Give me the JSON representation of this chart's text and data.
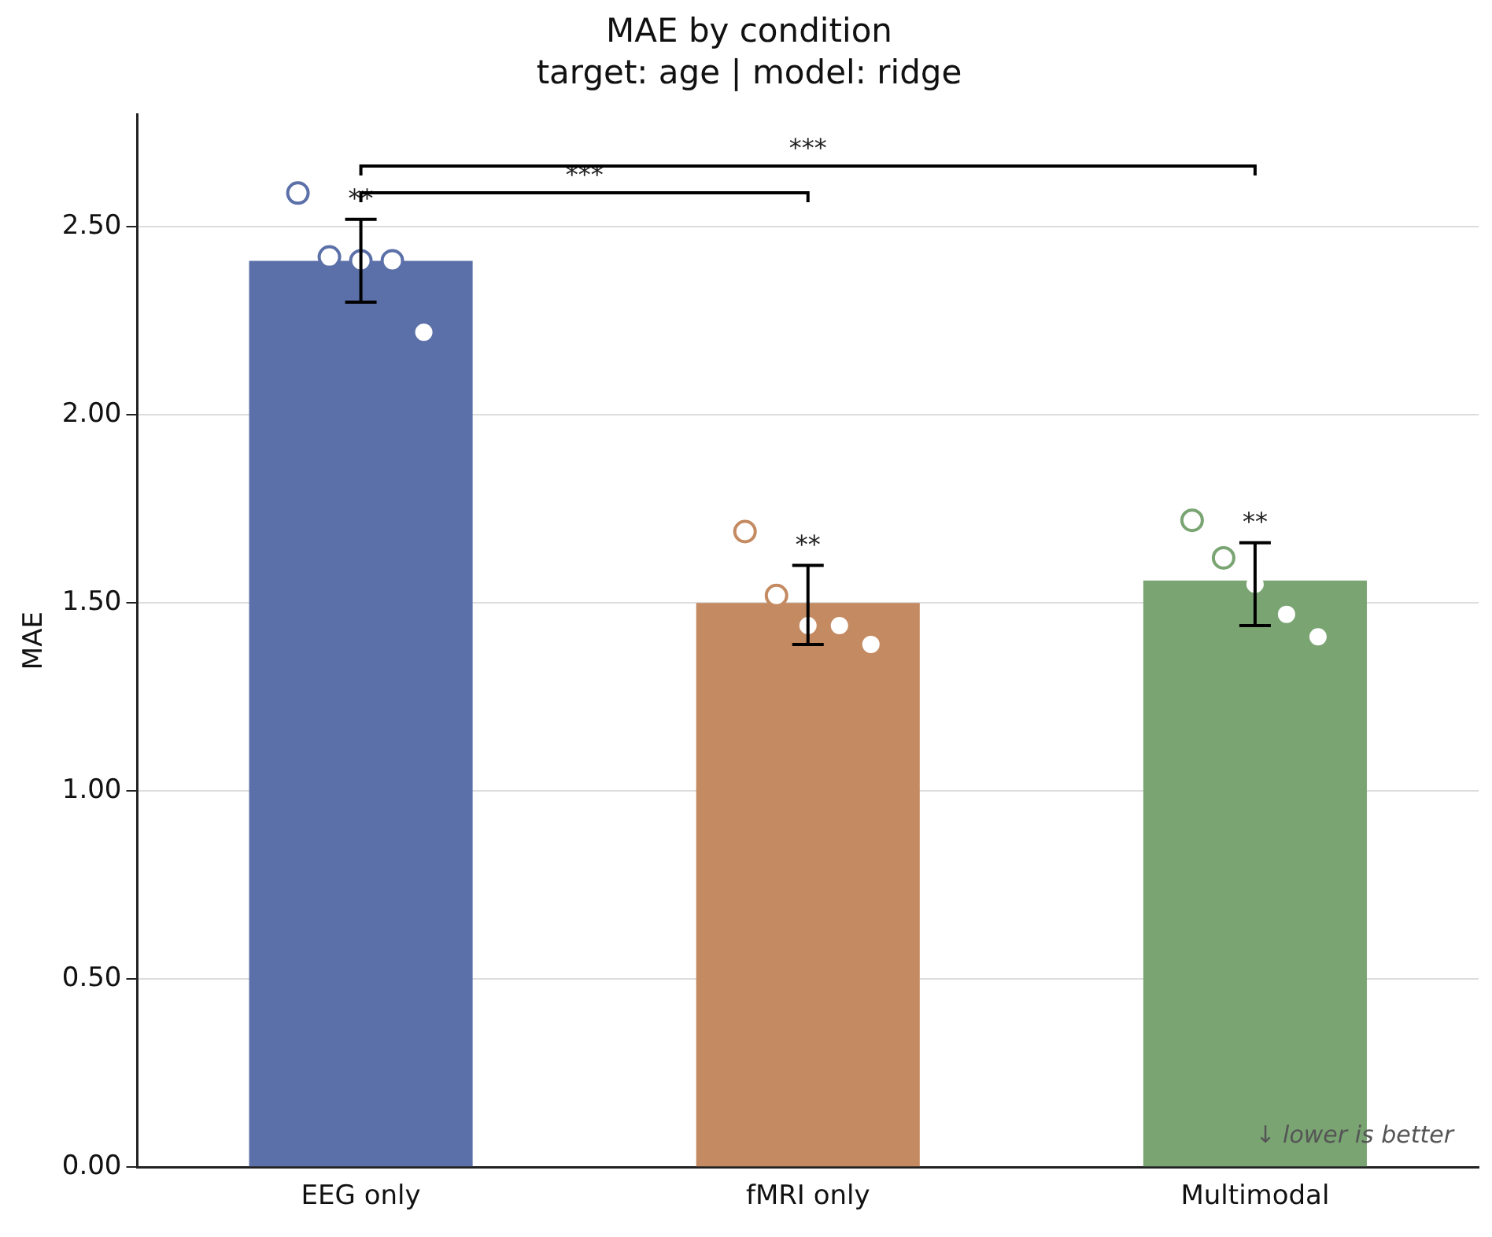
{
  "chart_data": {
    "type": "bar",
    "title": "MAE by condition",
    "subtitle": "target: age | model: ridge",
    "ylabel": "MAE",
    "categories": [
      "EEG only",
      "fMRI only",
      "Multimodal"
    ],
    "ylim": [
      0,
      2.8
    ],
    "yticks": [
      {
        "value": 0,
        "label": "0.00"
      },
      {
        "value": 0.5,
        "label": "0.50"
      },
      {
        "value": 1,
        "label": "1.00"
      },
      {
        "value": 1.5,
        "label": "1.50"
      },
      {
        "value": 2,
        "label": "2.00"
      },
      {
        "value": 2.5,
        "label": "2.50"
      }
    ],
    "grid": "y",
    "legend": false,
    "series": [
      {
        "type": "bar",
        "colors": [
          "#5b70a8",
          "#c48a62",
          "#7aa573"
        ],
        "values": [
          2.41,
          1.5,
          1.56
        ],
        "errors": [
          [
            2.3,
            2.52
          ],
          [
            1.39,
            1.6
          ],
          [
            1.44,
            1.66
          ]
        ]
      },
      {
        "type": "scatter",
        "marker": "circle",
        "colors": [
          "#5b70a8",
          "#5b70a8",
          "#5b70a8",
          "#5b70a8",
          "#c48a62",
          "#c48a62",
          "#7aa573",
          "#7aa573"
        ],
        "x": [
          "EEG only",
          "EEG only",
          "EEG only",
          "EEG only",
          "fMRI only",
          "fMRI only",
          "Multimodal",
          "Multimodal"
        ],
        "values": [
          2.59,
          2.42,
          2.41,
          2.41,
          1.69,
          1.52,
          1.72,
          1.62
        ]
      },
      {
        "type": "scatter",
        "marker": "circle",
        "color": "#ffffff",
        "x": [
          "EEG only",
          "fMRI only",
          "fMRI only",
          "fMRI only",
          "Multimodal",
          "Multimodal",
          "Multimodal"
        ],
        "values": [
          2.22,
          1.44,
          1.44,
          1.39,
          1.55,
          1.47,
          1.41
        ]
      }
    ],
    "annotations": [
      "**",
      "**",
      "**",
      "***",
      "***",
      "↓ lower is better"
    ]
  }
}
